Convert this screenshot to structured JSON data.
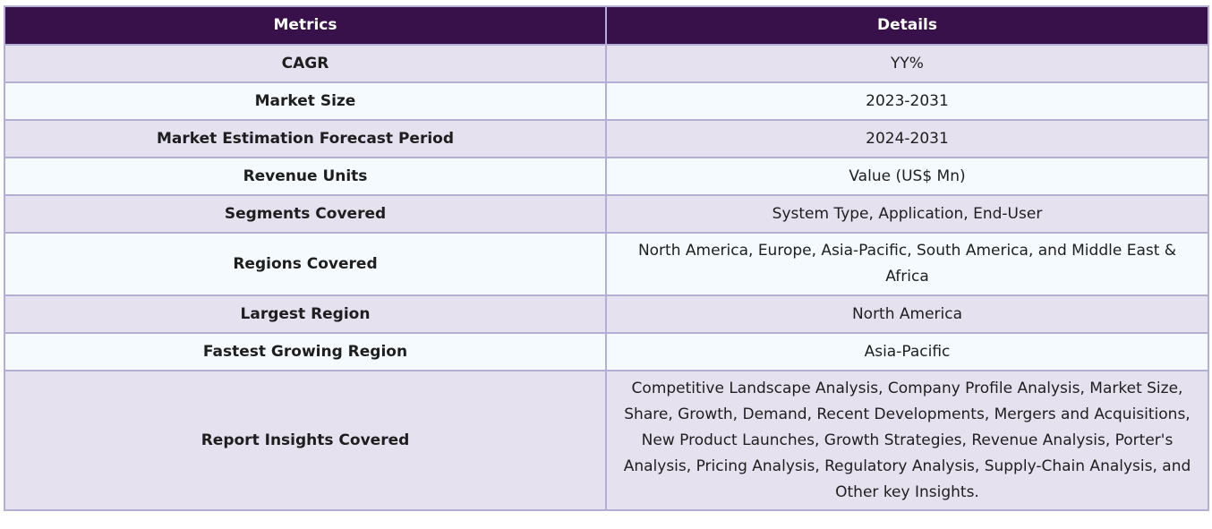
{
  "table": {
    "headers": {
      "metrics": "Metrics",
      "details": "Details"
    },
    "rows": [
      {
        "metric": "CAGR",
        "detail": "YY%"
      },
      {
        "metric": "Market Size",
        "detail": "2023-2031"
      },
      {
        "metric": "Market Estimation Forecast Period",
        "detail": "2024-2031"
      },
      {
        "metric": "Revenue Units",
        "detail": "Value (US$ Mn)"
      },
      {
        "metric": "Segments Covered",
        "detail": "System Type, Application, End-User"
      },
      {
        "metric": "Regions Covered",
        "detail": "North America, Europe, Asia-Pacific, South America, and Middle East & Africa"
      },
      {
        "metric": "Largest Region",
        "detail": "North America"
      },
      {
        "metric": "Fastest Growing Region",
        "detail": "Asia-Pacific"
      },
      {
        "metric": "Report Insights Covered",
        "detail": "Competitive Landscape Analysis, Company Profile Analysis, Market Size, Share, Growth, Demand, Recent Developments, Mergers and Acquisitions, New Product Launches, Growth Strategies, Revenue Analysis, Porter's Analysis, Pricing Analysis, Regulatory Analysis, Supply-Chain Analysis, and Other key Insights."
      }
    ]
  },
  "colors": {
    "header_bg": "#38104a",
    "row_odd_bg": "#e6e1ee",
    "row_even_bg": "#f4fafd",
    "border": "#b3aed3"
  }
}
